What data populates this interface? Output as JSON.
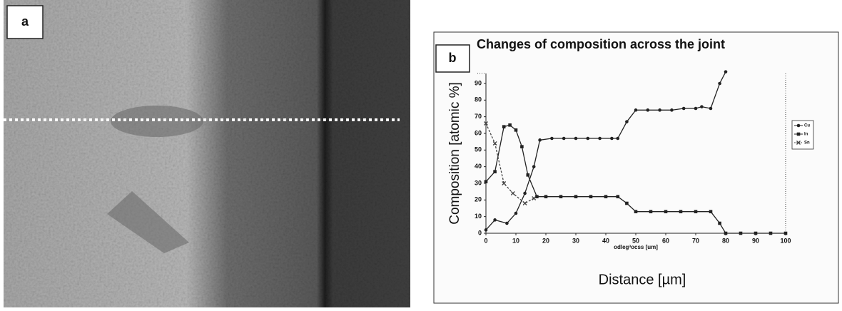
{
  "panel_labels": [
    "a",
    "b"
  ],
  "chart_data": {
    "type": "line",
    "title": "Changes of composition across the joint",
    "y_label": "Composition [atomic %]",
    "x_label_small": "odleg³ocss [um]",
    "x_label": "Distance [µm]",
    "xlim": [
      0,
      100
    ],
    "ylim": [
      0,
      96
    ],
    "xticks": [
      0,
      10,
      20,
      30,
      40,
      50,
      60,
      70,
      80,
      90,
      100
    ],
    "yticks": [
      0,
      10,
      20,
      30,
      40,
      50,
      60,
      70,
      80,
      90
    ],
    "legend": "right",
    "series": [
      {
        "name": "Cu",
        "color": "#222222",
        "linestyle": "solid",
        "x": [
          0,
          3,
          7,
          10,
          13,
          16,
          18,
          22,
          26,
          30,
          34,
          38,
          42,
          44,
          47,
          50,
          54,
          58,
          62,
          66,
          70,
          72,
          75,
          78,
          80
        ],
        "values": [
          2,
          8,
          6,
          12,
          24,
          40,
          56,
          57,
          57,
          57,
          57,
          57,
          57,
          57,
          67,
          74,
          74,
          74,
          74,
          75,
          75,
          76,
          75,
          90,
          97
        ]
      },
      {
        "name": "In",
        "color": "#222222",
        "linestyle": "solid",
        "x": [
          0,
          3,
          6,
          8,
          10,
          12,
          14,
          17,
          20,
          25,
          30,
          35,
          40,
          44,
          47,
          50,
          55,
          60,
          65,
          70,
          75,
          78,
          80,
          85,
          90,
          95,
          100
        ],
        "values": [
          31,
          37,
          64,
          65,
          62,
          52,
          35,
          22,
          22,
          22,
          22,
          22,
          22,
          22,
          18,
          13,
          13,
          13,
          13,
          13,
          13,
          6,
          0,
          0,
          0,
          0,
          0
        ]
      },
      {
        "name": "Sn",
        "color": "#444444",
        "linestyle": "dashed",
        "x": [
          0,
          3,
          6,
          9,
          13,
          16
        ],
        "values": [
          66,
          54,
          30,
          24,
          18,
          21
        ]
      }
    ]
  }
}
